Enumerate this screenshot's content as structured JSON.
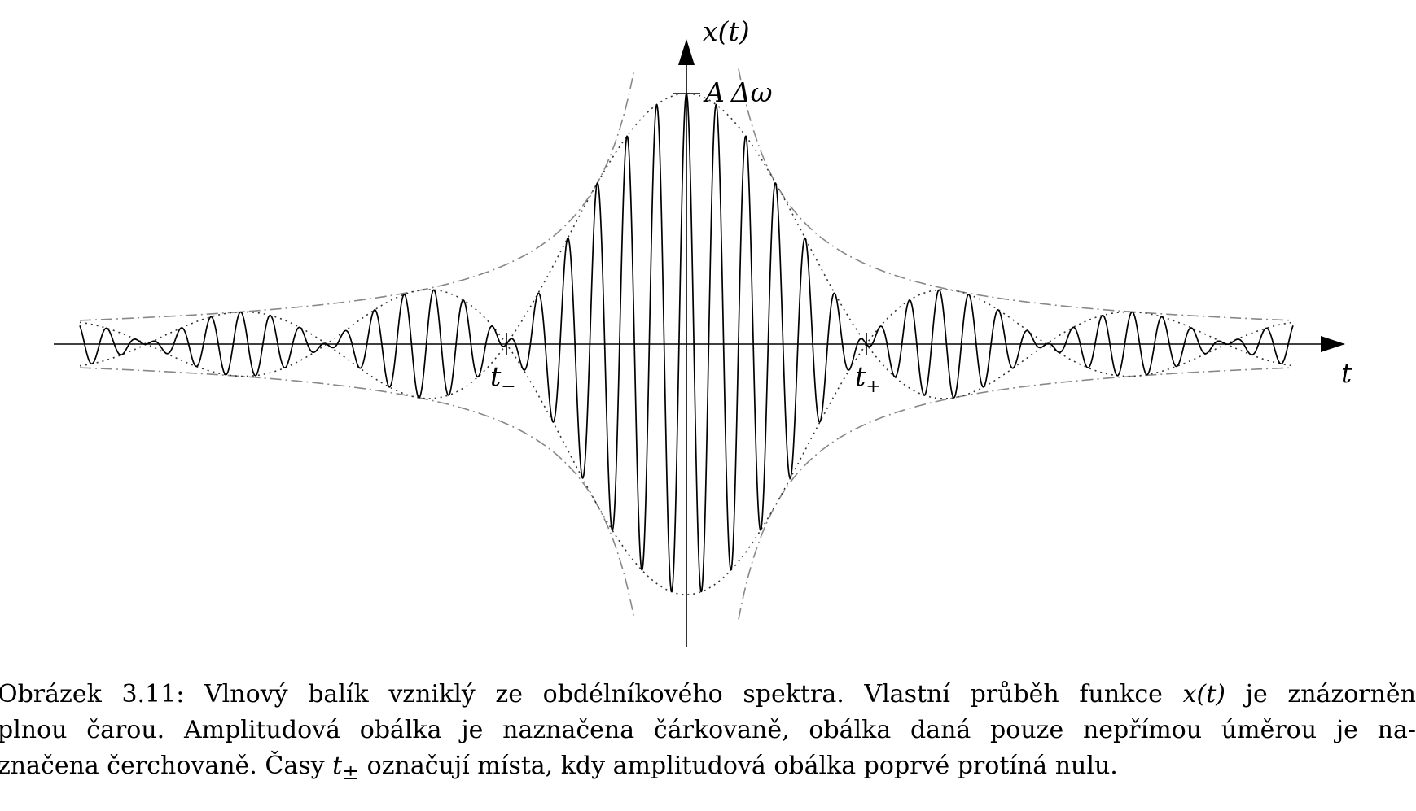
{
  "figure": {
    "y_axis_label": "x(t)",
    "x_axis_label": "t",
    "peak_label_A": "A",
    "peak_label_rest": "Δω",
    "t_minus_base": "t",
    "t_minus_sub": "−",
    "t_plus_base": "t",
    "t_plus_sub": "+"
  },
  "caption": {
    "line1_prefix": "Obrázek 3.11: Vlnový balík vzniklý ze obdélníkového spektra. Vlastní průběh funkce ",
    "line1_math": "x(t)",
    "line1_suffix": " je znázorněn",
    "line2": "plnou čarou. Amplitudová obálka je naznačena čárkovaně, obálka daná pouze nepřímou úměrou je na-",
    "line3_prefix": "značena čerchovaně. Časy ",
    "line3_math": "t",
    "line3_sub": "±",
    "line3_suffix": " označují místa, kdy amplitudová obálka poprvé protíná nulu."
  },
  "colors": {
    "signal": "#000000",
    "amplitude_envelope": "#333333",
    "reciprocal_envelope": "#888888",
    "axes": "#000000"
  }
}
